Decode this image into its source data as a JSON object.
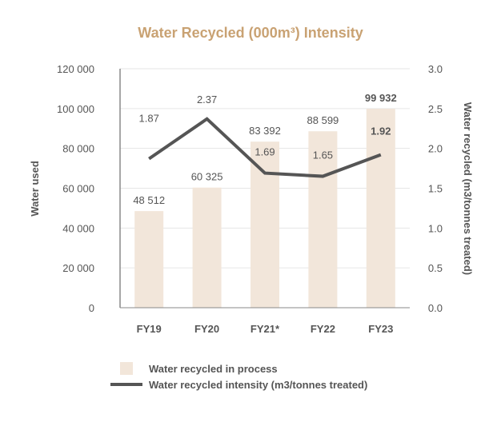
{
  "chart_data": {
    "type": "bar+line",
    "title": "Water Recycled (000m³) Intensity",
    "categories": [
      "FY19",
      "FY20",
      "FY21*",
      "FY22",
      "FY23"
    ],
    "series": [
      {
        "name": "Water recycled in process",
        "type": "bar",
        "axis": "left",
        "values": [
          48512,
          60325,
          83392,
          88599,
          99932
        ],
        "labels": [
          "48 512",
          "60 325",
          "83 392",
          "88 599",
          "99 932"
        ],
        "color": "#f2e6da"
      },
      {
        "name": "Water recycled intensity (m3/tonnes treated)",
        "type": "line",
        "axis": "right",
        "values": [
          1.87,
          2.37,
          1.69,
          1.65,
          1.92
        ],
        "labels": [
          "1.87",
          "2.37",
          "1.69",
          "1.65",
          "1.92"
        ],
        "color": "#555555"
      }
    ],
    "ylabel": "Water used",
    "y2label": "Water recycled (m3/tonnes treated)",
    "ylim": [
      0,
      120000
    ],
    "y2lim": [
      0,
      3
    ],
    "yticks": [
      "0",
      "20 000",
      "40 000",
      "60 000",
      "80 000",
      "100 000",
      "120 000"
    ],
    "y2ticks": [
      "0.0",
      "0.5",
      "1.0",
      "1.5",
      "2.0",
      "2.5",
      "3.0"
    ],
    "grid": true,
    "legend": "bottom",
    "title_color": "#c9a273"
  }
}
